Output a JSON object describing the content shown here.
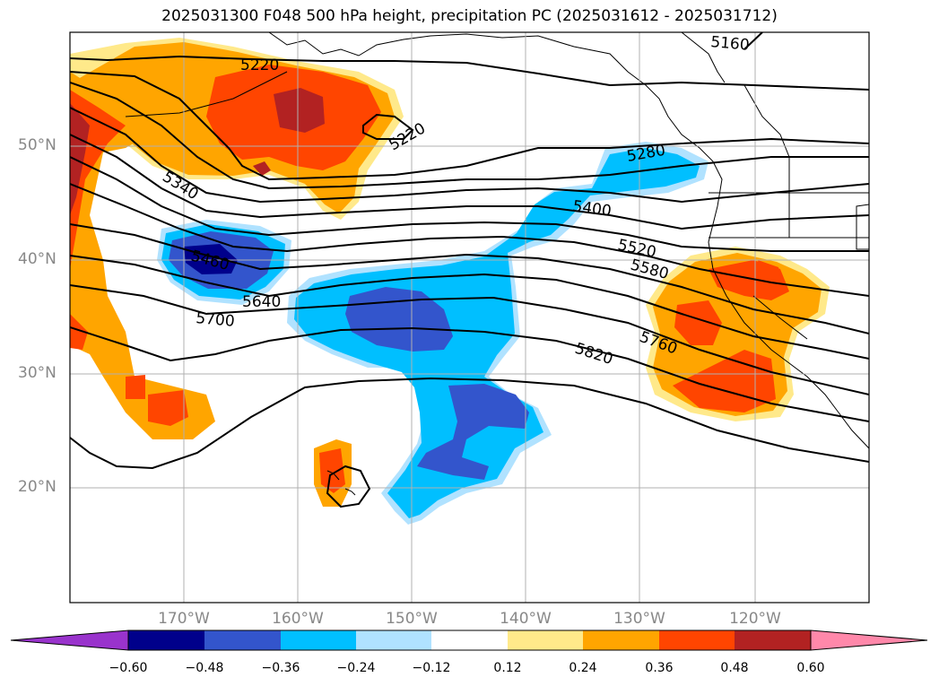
{
  "title": "2025031300 F048 500 hPa height, precipitation PC (2025031612 - 2025031712)",
  "map": {
    "region": "North Pacific / western North America",
    "lat_labels": [
      "50°N",
      "40°N",
      "30°N",
      "20°N"
    ],
    "lon_labels": [
      "170°W",
      "160°W",
      "150°W",
      "140°W",
      "130°W",
      "120°W"
    ],
    "contour_labels": [
      "5160",
      "5220",
      "5220",
      "5280",
      "5340",
      "5400",
      "5460",
      "5520",
      "5580",
      "5640",
      "5700",
      "5760",
      "5820"
    ],
    "gridlines": true
  },
  "colorbar": {
    "ticks": [
      "−0.60",
      "−0.48",
      "−0.36",
      "−0.24",
      "−0.12",
      "0.12",
      "0.24",
      "0.36",
      "0.48",
      "0.60"
    ],
    "colors": [
      "#9933cc",
      "#00008b",
      "#3355cc",
      "#00bfff",
      "#b0e2ff",
      "#ffffff",
      "#ffe98a",
      "#ffa500",
      "#ff4500",
      "#b22222",
      "#ff88aa"
    ],
    "extend": "both"
  }
}
